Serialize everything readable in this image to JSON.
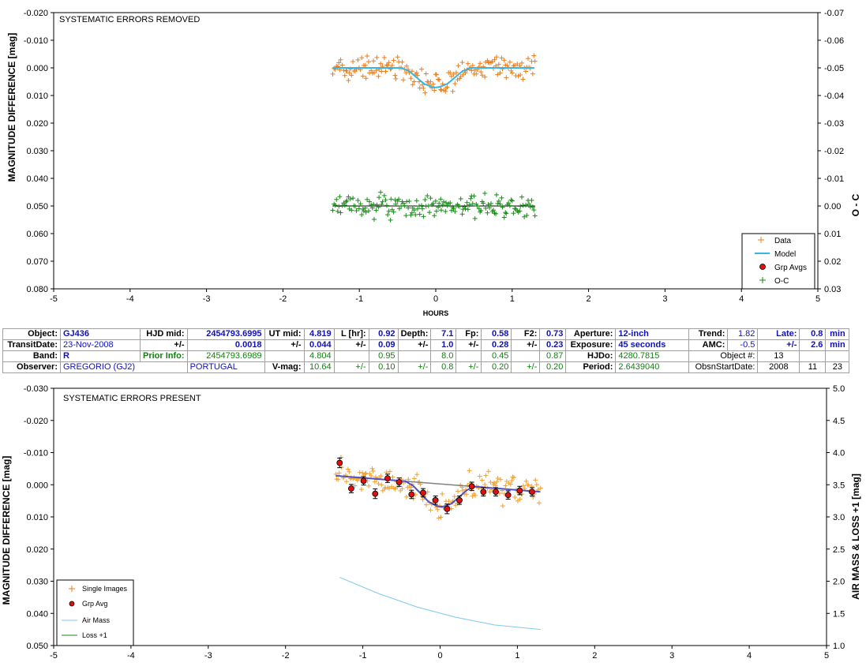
{
  "colors": {
    "data": "#e87d1e",
    "model": "#38b6e0",
    "grp_avg": "#e01010",
    "oc": "#1a8a1a",
    "trend": "#5050c8",
    "airmass": "#7ec8ee",
    "loss": "#1a8a1a"
  },
  "chart_data": [
    {
      "type": "scatter",
      "title": "SYSTEMATIC ERRORS REMOVED",
      "xlabel": "HOURS",
      "ylabel": "MAGNITUDE DIFFERENCE [mag]",
      "y2label": "O - C",
      "xlim": [
        -5,
        5
      ],
      "ylim": [
        0.08,
        -0.02
      ],
      "y2lim": [
        0.03,
        -0.07
      ],
      "x_ticks": [
        "-5",
        "-4",
        "-3",
        "-2",
        "-1",
        "0",
        "1",
        "2",
        "3",
        "4",
        "5"
      ],
      "y_ticks": [
        "-0.020",
        "-0.010",
        "0.000",
        "0.010",
        "0.020",
        "0.030",
        "0.040",
        "0.050",
        "0.060",
        "0.070",
        "0.080"
      ],
      "y2_ticks": [
        "-0.07",
        "-0.06",
        "-0.05",
        "-0.04",
        "-0.03",
        "-0.02",
        "-0.01",
        "0.00",
        "0.01",
        "0.02",
        "0.03"
      ],
      "legend": [
        "Data",
        "Model",
        "Grp Avgs",
        "O-C"
      ],
      "legend_position": "bottom-right",
      "series": [
        {
          "name": "Data",
          "marker": "plus",
          "x_range": [
            -1.35,
            1.3
          ],
          "baseline": 0.0,
          "transit_depth": 0.0071,
          "scatter": 0.0042
        },
        {
          "name": "Model",
          "x": [
            -1.35,
            -0.45,
            -0.35,
            -0.25,
            -0.15,
            -0.05,
            0.0,
            0.05,
            0.15,
            0.25,
            0.35,
            0.45,
            1.3
          ],
          "y": [
            0.0,
            0.0,
            0.0012,
            0.0035,
            0.0058,
            0.0069,
            0.0071,
            0.0069,
            0.0058,
            0.0035,
            0.0012,
            0.0,
            0.0
          ]
        },
        {
          "name": "O-C",
          "marker": "plus",
          "x_range": [
            -1.35,
            1.3
          ],
          "offset": 0.05,
          "scatter": 0.0042
        }
      ]
    },
    {
      "type": "scatter",
      "title": "SYSTEMATIC ERRORS PRESENT",
      "xlabel": "",
      "ylabel": "MAGNITUDE DIFFERENCE [mag]",
      "y2label": "AIR MASS & LOSS +1 [mag]",
      "xlim": [
        -5,
        5
      ],
      "ylim": [
        0.05,
        -0.03
      ],
      "y2lim": [
        1.0,
        5.0
      ],
      "x_ticks": [
        "-5",
        "-4",
        "-3",
        "-2",
        "-1",
        "0",
        "1",
        "2",
        "3",
        "4",
        "5"
      ],
      "y_ticks": [
        "-0.030",
        "-0.020",
        "-0.010",
        "0.000",
        "0.010",
        "0.020",
        "0.030",
        "0.040",
        "0.050"
      ],
      "y2_ticks": [
        "5.0",
        "4.5",
        "4.0",
        "3.5",
        "3.0",
        "2.5",
        "2.0",
        "1.5",
        "1.0"
      ],
      "legend": [
        "Single Images",
        "Grp Avg",
        "Air Mass",
        "Loss +1"
      ],
      "legend_position": "bottom-left",
      "series": [
        {
          "name": "Grp Avg",
          "x": [
            -1.3,
            -1.15,
            -0.99,
            -0.84,
            -0.68,
            -0.53,
            -0.37,
            -0.22,
            -0.06,
            0.09,
            0.25,
            0.41,
            0.56,
            0.72,
            0.88,
            1.03,
            1.19
          ],
          "y": [
            -0.0068,
            0.0012,
            -0.0012,
            0.0028,
            -0.002,
            -0.0008,
            0.003,
            0.0025,
            0.0048,
            0.0075,
            0.0048,
            0.0005,
            0.0022,
            0.0022,
            0.0032,
            0.0018,
            0.0022
          ],
          "err": [
            0.0015,
            0.0013,
            0.0013,
            0.0015,
            0.0013,
            0.0013,
            0.0013,
            0.0013,
            0.0013,
            0.0015,
            0.0013,
            0.0013,
            0.0013,
            0.0013,
            0.0013,
            0.0013,
            0.0013
          ]
        },
        {
          "name": "Trend",
          "x": [
            -1.35,
            1.3
          ],
          "y": [
            -0.0028,
            0.0022
          ]
        },
        {
          "name": "Air Mass",
          "x": [
            -1.3,
            -0.8,
            -0.3,
            0.2,
            0.7,
            1.3
          ],
          "y": [
            2.06,
            1.81,
            1.6,
            1.44,
            1.32,
            1.25
          ]
        }
      ]
    }
  ],
  "info": {
    "row1": {
      "object_label": "Object:",
      "object": "GJ436",
      "hjd_label": "HJD mid:",
      "hjd": "2454793.6995",
      "ut_label": "UT mid:",
      "ut": "4.819",
      "l_label": "L [hr]:",
      "l": "0.92",
      "depth_label": "Depth:",
      "depth": "7.1",
      "fp_label": "Fp:",
      "fp": "0.58",
      "f2_label": "F2:",
      "f2": "0.73",
      "aperture_label": "Aperture:",
      "aperture": "12-inch",
      "trend_label": "Trend:",
      "trend": "1.82",
      "late_label": "Late:",
      "late": "0.8",
      "late_unit": "min"
    },
    "row2": {
      "date_label": "TransitDate:",
      "date": "23-Nov-2008",
      "pm1": "+/-",
      "hjd_err": "0.0018",
      "pm2": "+/-",
      "ut_err": "0.044",
      "pm3": "+/-",
      "l_err": "0.09",
      "pm4": "+/-",
      "depth_err": "1.0",
      "pm5": "+/-",
      "fp_err": "0.28",
      "pm6": "+/-",
      "f2_err": "0.23",
      "exposure_label": "Exposure:",
      "exposure": "45 seconds",
      "amc_label": "AMC:",
      "amc": "-0.5",
      "pm7": "+/-",
      "late_err": "2.6",
      "late_err_unit": "min"
    },
    "row3": {
      "band_label": "Band:",
      "band": "R",
      "prior_label": "Prior Info:",
      "prior": "2454793.6989",
      "ut_prior": "4.804",
      "l_prior": "0.95",
      "depth_prior": "8.0",
      "fp_prior": "0.45",
      "f2_prior": "0.87",
      "hjdo_label": "HJDo:",
      "hjdo": "4280.7815",
      "objnum_label": "Object #:",
      "objnum": "13"
    },
    "row4": {
      "observer_label": "Observer:",
      "observer": "GREGORIO (GJ2)",
      "country": "PORTUGAL",
      "vmag_label": "V-mag:",
      "vmag": "10.64",
      "pm1": "+/-",
      "l_err": "0.10",
      "pm2": "+/-",
      "depth_err": "0.8",
      "pm3": "+/-",
      "fp_err": "0.20",
      "pm4": "+/-",
      "f2_err": "0.20",
      "period_label": "Period:",
      "period": "2.6439040",
      "obsstart_label": "ObsnStartDate:",
      "year": "2008",
      "month": "11",
      "day": "23"
    }
  }
}
